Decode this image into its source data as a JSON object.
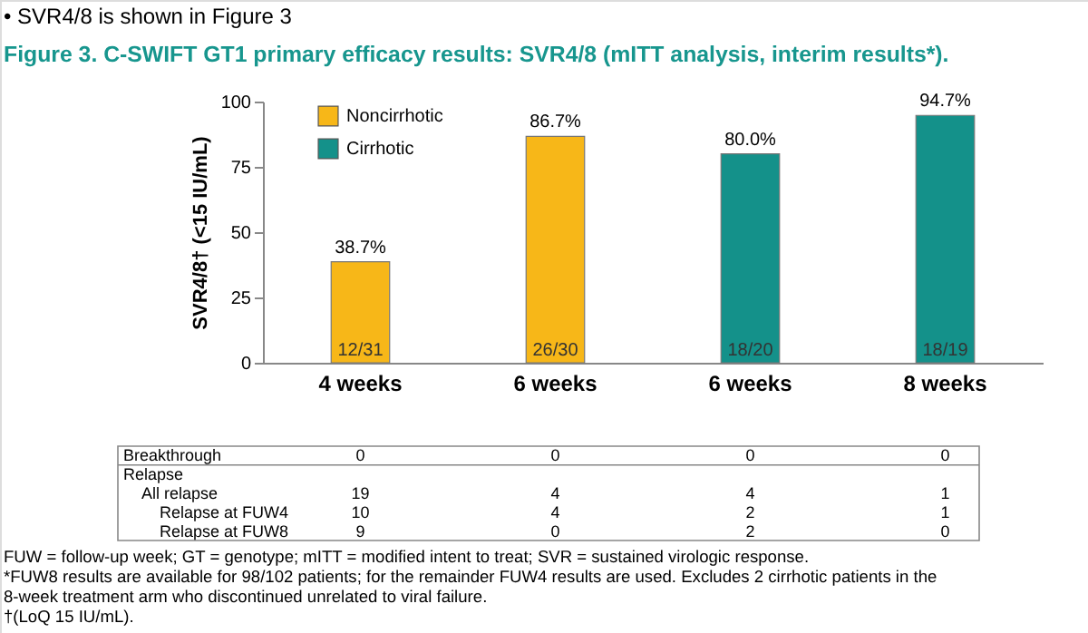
{
  "chart_data": {
    "type": "bar",
    "title": "Figure 3. C-SWIFT GT1 primary efficacy results: SVR4/8 (mITT analysis, interim results*).",
    "subtitle": "• SVR4/8 is shown in Figure 3",
    "ylabel": "SVR4/8† (<15 IU/mL)",
    "categories": [
      "4 weeks",
      "6 weeks",
      "6 weeks",
      "8 weeks"
    ],
    "series": [
      {
        "name": "Noncirrhotic",
        "color": "#f7b718",
        "values": [
          38.7,
          86.7,
          null,
          null
        ],
        "value_labels": [
          "38.7%",
          "86.7%",
          null,
          null
        ]
      },
      {
        "name": "Cirrhotic",
        "color": "#14918a",
        "values": [
          null,
          null,
          80.0,
          94.7
        ],
        "value_labels": [
          null,
          null,
          "80.0%",
          "94.7%"
        ]
      }
    ],
    "ylim": [
      0,
      100
    ],
    "yticks": [
      0,
      25,
      50,
      75,
      100
    ],
    "legend": "top left",
    "annotations": [
      "12/31",
      "26/30",
      "18/20",
      "18/19",
      "Breakthrough",
      "0",
      "0",
      "0",
      "0",
      "Relapse",
      "All relapse",
      "19",
      "4",
      "4",
      "1",
      "Relapse at FUW4",
      "10",
      "4",
      "2",
      "1",
      "Relapse at FUW8",
      "9",
      "0",
      "2",
      "0",
      "FUW = follow-up week; GT = genotype; mITT = modified intent to treat; SVR = sustained virologic response.",
      "*FUW8 results are available for 98/102 patients; for the remainder FUW4 results are used. Excludes 2 cirrhotic patients in the",
      "8-week treatment arm who discontinued unrelated to viral failure.",
      "†(LoQ 15 IU/mL)."
    ]
  }
}
